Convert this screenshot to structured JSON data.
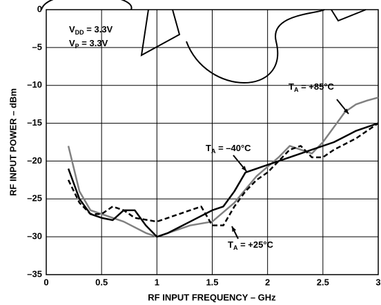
{
  "chart_data": {
    "type": "line",
    "xlabel": "RF INPUT FREQUENCY – GHz",
    "ylabel": "RF INPUT POWER – dBm",
    "xlim": [
      0,
      3
    ],
    "ylim": [
      -35,
      0
    ],
    "xticks": [
      0,
      0.5,
      1,
      1.5,
      2,
      2.5,
      3
    ],
    "yticks": [
      {
        "value": -35,
        "label": "–35"
      },
      {
        "value": -30,
        "label": "–30"
      },
      {
        "value": -25,
        "label": "–25"
      },
      {
        "value": -20,
        "label": "–20"
      },
      {
        "value": -15,
        "label": "–15"
      },
      {
        "value": -10,
        "label": "–10"
      },
      {
        "value": -5,
        "label": "–5"
      },
      0
    ],
    "grid": true,
    "annotations": [
      {
        "text": "V",
        "sub": "DD",
        "rest": " = 3.3V"
      },
      {
        "text": "V",
        "sub": "P",
        "rest": " = 3.3V"
      }
    ],
    "series": [
      {
        "label": {
          "text": "T",
          "sub": "A",
          "rest": " = +85°C"
        },
        "color": "#808080",
        "dash": false,
        "x": [
          0.2,
          0.3,
          0.4,
          0.5,
          0.7,
          0.9,
          1.0,
          1.1,
          1.3,
          1.5,
          1.7,
          1.9,
          2.1,
          2.2,
          2.3,
          2.4,
          2.5,
          2.6,
          2.7,
          2.8,
          2.9,
          3.0
        ],
        "values": [
          -18,
          -24,
          -26.5,
          -27,
          -28,
          -29.5,
          -30,
          -29.5,
          -28.5,
          -28,
          -25.5,
          -22,
          -19.5,
          -18,
          -18.5,
          -19,
          -17.5,
          -15.5,
          -13.5,
          -12.5,
          -12,
          -11.6
        ]
      },
      {
        "label": {
          "text": "T",
          "sub": "A",
          "rest": " = –40°C"
        },
        "color": "#000000",
        "dash": false,
        "x": [
          0.2,
          0.3,
          0.4,
          0.5,
          0.6,
          0.7,
          0.8,
          0.9,
          1.0,
          1.1,
          1.3,
          1.5,
          1.6,
          1.7,
          1.8,
          1.9,
          2.0,
          2.2,
          2.4,
          2.6,
          2.8,
          3.0
        ],
        "values": [
          -21,
          -25,
          -27,
          -27.5,
          -27.8,
          -26.5,
          -26.5,
          -28.5,
          -30,
          -29.5,
          -28,
          -26.5,
          -26,
          -24,
          -21.5,
          -21,
          -20.5,
          -19.5,
          -18.5,
          -17.5,
          -16,
          -15
        ]
      },
      {
        "label": {
          "text": "T",
          "sub": "A",
          "rest": " = +25°C"
        },
        "color": "#000000",
        "dash": true,
        "x": [
          0.2,
          0.3,
          0.4,
          0.5,
          0.6,
          0.7,
          0.8,
          1.0,
          1.2,
          1.4,
          1.5,
          1.6,
          1.7,
          1.8,
          1.9,
          2.0,
          2.1,
          2.2,
          2.3,
          2.4,
          2.5,
          2.6,
          2.8,
          3.0
        ],
        "values": [
          -22.5,
          -25.5,
          -27,
          -27,
          -26,
          -26.5,
          -27.5,
          -28,
          -27,
          -26,
          -28.5,
          -28.5,
          -26,
          -24,
          -22.5,
          -21.5,
          -20,
          -18.5,
          -18,
          -19.5,
          -19.5,
          -18.5,
          -17,
          -15
        ]
      }
    ]
  }
}
